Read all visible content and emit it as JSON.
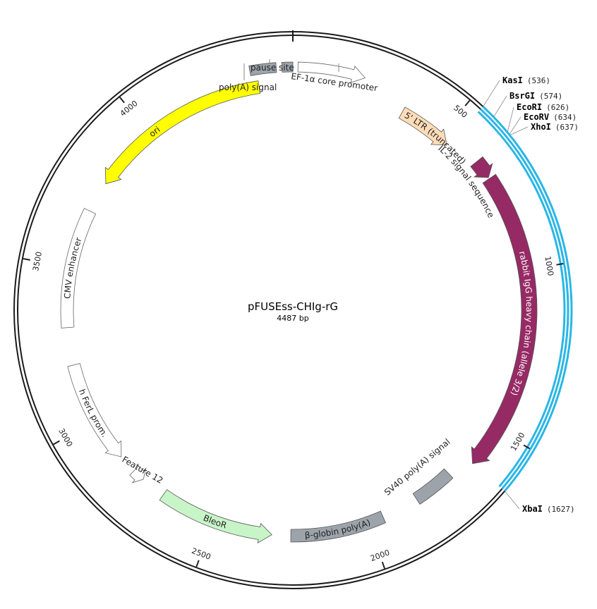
{
  "plasmid": {
    "name": "pFUSEss-CHIg-rG",
    "size_label": "4487 bp",
    "length": 4487
  },
  "colors": {
    "backbone": "#1a1a1a",
    "selection": "#29b6e6",
    "ori": "#ffff00",
    "ltr": "#ffdcb8",
    "igg": "#962a64",
    "bleor": "#c8f5c8",
    "grey_feature": "#9ca3ab",
    "open_feature": "#ffffff"
  },
  "ticks": [
    {
      "pos": 500,
      "label": "500"
    },
    {
      "pos": 1000,
      "label": "1000"
    },
    {
      "pos": 1500,
      "label": "1500"
    },
    {
      "pos": 2000,
      "label": "2000"
    },
    {
      "pos": 2500,
      "label": "2500"
    },
    {
      "pos": 3000,
      "label": "3000"
    },
    {
      "pos": 3500,
      "label": "3500"
    },
    {
      "pos": 4000,
      "label": "4000"
    }
  ],
  "features": [
    {
      "name": "5' LTR (truncated)",
      "start": 360,
      "end": 536,
      "strand": 1,
      "track": 0,
      "color": "ltr",
      "label_mode": "inside"
    },
    {
      "name": "IL-2 signal sequence",
      "start": 636,
      "end": 696,
      "strand": 1,
      "track": 0,
      "color": "igg",
      "label_mode": "inside_text_only"
    },
    {
      "name": "rabbit IgG heavy chain (allele 3/2)",
      "start": 700,
      "end": 1627,
      "strand": 1,
      "track": 0,
      "color": "igg",
      "label_mode": "inside"
    },
    {
      "name": "SV40 poly(A) signal",
      "start": 1700,
      "end": 1830,
      "strand": 0,
      "track": 0,
      "color": "grey_feature",
      "label_mode": "outside_left"
    },
    {
      "name": "β-globin poly(A)",
      "start": 1950,
      "end": 2250,
      "strand": 0,
      "track": 0,
      "color": "grey_feature",
      "label_mode": "inside"
    },
    {
      "name": "BleoR",
      "start": 2310,
      "end": 2680,
      "strand": -1,
      "track": 0,
      "color": "bleor",
      "label_mode": "inside"
    },
    {
      "name": "Feature 12",
      "start": 2760,
      "end": 2800,
      "strand": -1,
      "track": 0,
      "color": "open_feature",
      "label_mode": "text_only"
    },
    {
      "name": "h FerL prom.",
      "start": 2860,
      "end": 3190,
      "strand": -1,
      "track": 0,
      "color": "open_feature",
      "label_mode": "inside"
    },
    {
      "name": "CMV enhancer",
      "start": 3310,
      "end": 3690,
      "strand": 0,
      "track": 0,
      "color": "open_feature",
      "label_mode": "inside"
    },
    {
      "name": "ori",
      "start": 3790,
      "end": 4380,
      "strand": -1,
      "track": 0,
      "color": "ori",
      "label_mode": "inside"
    },
    {
      "name": "poly(A) signal",
      "start": 4360,
      "end": 4438,
      "strand": 0,
      "track": -1,
      "color": "grey_feature",
      "label_mode": "none"
    },
    {
      "name": "pause site",
      "start": 4455,
      "end": 4487,
      "strand": 0,
      "track": -1,
      "color": "grey_feature",
      "label_mode": "none"
    },
    {
      "name": "EF-1α core promoter",
      "start": 15,
      "end": 215,
      "strand": 1,
      "track": -1,
      "color": "open_feature",
      "label_mode": "none"
    }
  ],
  "outer_labels": {
    "poly_a_signal": "poly(A) signal",
    "pause_site": "pause site",
    "ef1a": "EF-1α core promoter"
  },
  "selected_region": {
    "start": 536,
    "end": 1627
  },
  "restriction_sites": [
    {
      "name": "KasI",
      "pos_label": "(536)",
      "pos": 536
    },
    {
      "name": "BsrGI",
      "pos_label": "(574)",
      "pos": 574
    },
    {
      "name": "EcoRI",
      "pos_label": "(626)",
      "pos": 626
    },
    {
      "name": "EcoRV",
      "pos_label": "(634)",
      "pos": 634
    },
    {
      "name": "XhoI",
      "pos_label": "(637)",
      "pos": 637
    },
    {
      "name": "XbaI",
      "pos_label": "(1627)",
      "pos": 1627
    }
  ]
}
